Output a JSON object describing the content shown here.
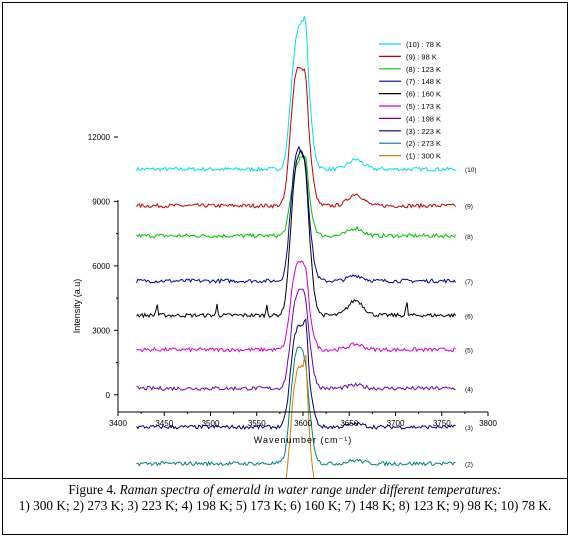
{
  "caption": {
    "lead": "Figure 4.",
    "title": "Raman spectra of emerald in water range under different temperatures:",
    "body": "1) 300 K; 2) 273 K; 3) 223 K; 4) 198 K; 5) 173 K; 6) 160 K; 7) 148 K; 8) 123 K; 9) 98 K; 10) 78 K."
  },
  "chart_data": {
    "type": "line",
    "xlabel": "Wavenumber (cm⁻¹)",
    "ylabel": "Intensity (a.u)",
    "xlim": [
      3400,
      3800
    ],
    "ylim": [
      -800,
      14000
    ],
    "xticks": [
      "3400",
      "3450",
      "3500",
      "3550",
      "3600",
      "3650",
      "3700",
      "3750",
      "3800"
    ],
    "yticks": [
      "0",
      "3000",
      "6000",
      "9000",
      "12000"
    ],
    "legend_position": "top-right",
    "grid": false,
    "series": [
      {
        "name": "(10) : 78 K",
        "label": "(10)",
        "color": "#00e0e0",
        "baseline": 10500,
        "peak": 6200,
        "shoulder": 3300,
        "sharp": 1200,
        "bump": 450,
        "spikes": []
      },
      {
        "name": "(9) : 98 K",
        "label": "(9)",
        "color": "#c00000",
        "baseline": 8800,
        "peak": 5600,
        "shoulder": 3800,
        "sharp": 900,
        "bump": 550,
        "spikes": []
      },
      {
        "name": "(8) : 123 K",
        "label": "(8)",
        "color": "#00c000",
        "baseline": 7400,
        "peak": 3300,
        "shoulder": 1700,
        "sharp": 600,
        "bump": 350,
        "spikes": []
      },
      {
        "name": "(7) : 148 K",
        "label": "(7)",
        "color": "#0000a0",
        "baseline": 5300,
        "peak": 5400,
        "shoulder": 3500,
        "sharp": 350,
        "bump": 250,
        "spikes": []
      },
      {
        "name": "(6) : 160 K",
        "label": "(6)",
        "color": "#000000",
        "baseline": 3700,
        "peak": 6800,
        "shoulder": 4000,
        "sharp": 400,
        "bump": 700,
        "spikes": [
          [
            3442,
            600
          ],
          [
            3507,
            500
          ],
          [
            3561,
            500
          ],
          [
            3712,
            650
          ]
        ]
      },
      {
        "name": "(5) : 173 K",
        "label": "(5)",
        "color": "#d000d0",
        "baseline": 2100,
        "peak": 3600,
        "shoulder": 2300,
        "sharp": 450,
        "bump": 250,
        "spikes": []
      },
      {
        "name": "(4) : 198 K",
        "label": "(4)",
        "color": "#7000b0",
        "baseline": 300,
        "peak": 4200,
        "shoulder": 2400,
        "sharp": 300,
        "bump": 150,
        "spikes": []
      },
      {
        "name": "(3) : 223 K",
        "label": "(3)",
        "color": "#000070",
        "baseline": -1500,
        "peak": 4100,
        "shoulder": 2700,
        "sharp": 1300,
        "bump": 150,
        "spikes": []
      },
      {
        "name": "(2) : 273 K",
        "label": "(2)",
        "color": "#008080",
        "baseline": -3200,
        "peak": 4700,
        "shoulder": 3100,
        "sharp": 300,
        "bump": 150,
        "spikes": []
      },
      {
        "name": "(1) : 300 K",
        "label": "(1)",
        "color": "#d08000",
        "baseline": -4900,
        "peak": 5500,
        "shoulder": 3400,
        "sharp": 1600,
        "bump": 120,
        "spikes": []
      }
    ]
  }
}
